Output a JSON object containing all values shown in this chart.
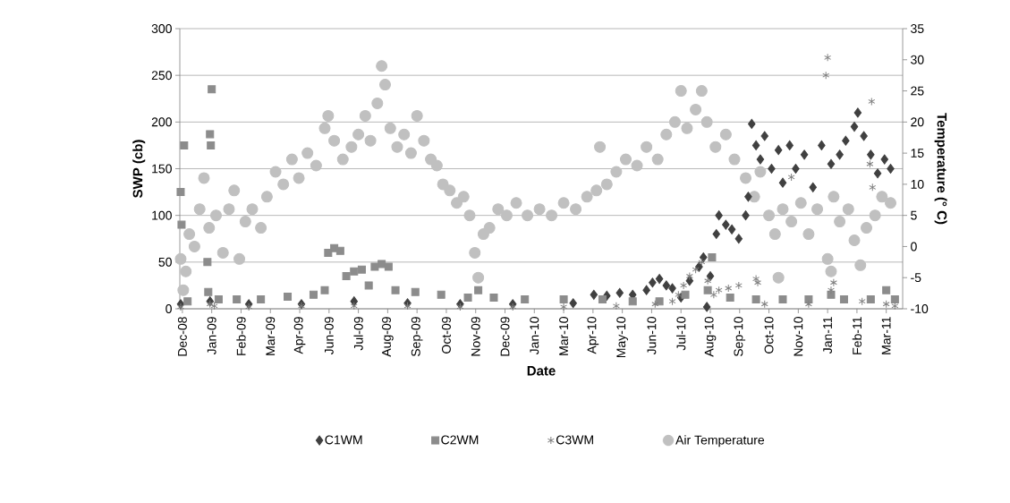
{
  "chart_data": {
    "type": "scatter",
    "xlabel": "Date",
    "ylabel": "SWP (cb)",
    "y2label": "Temperature (° C)",
    "xlim": [
      "2008-12-11",
      "2011-03-29"
    ],
    "xticks": [
      {
        "value": "2008-12-14",
        "label": "Dec-08"
      },
      {
        "value": "2009-01-17",
        "label": "Jan-09"
      },
      {
        "value": "2009-02-20",
        "label": "Feb-09"
      },
      {
        "value": "2009-03-26",
        "label": "Mar-09"
      },
      {
        "value": "2009-04-29",
        "label": "Apr-09"
      },
      {
        "value": "2009-06-02",
        "label": "Jun-09"
      },
      {
        "value": "2009-07-06",
        "label": "Jul-09"
      },
      {
        "value": "2009-08-09",
        "label": "Aug-09"
      },
      {
        "value": "2009-09-12",
        "label": "Sep-09"
      },
      {
        "value": "2009-10-16",
        "label": "Oct-09"
      },
      {
        "value": "2009-11-19",
        "label": "Nov-09"
      },
      {
        "value": "2009-12-23",
        "label": "Dec-09"
      },
      {
        "value": "2010-01-26",
        "label": "Jan-10"
      },
      {
        "value": "2010-03-01",
        "label": "Mar-10"
      },
      {
        "value": "2010-04-04",
        "label": "Apr-10"
      },
      {
        "value": "2010-05-08",
        "label": "May-10"
      },
      {
        "value": "2010-06-11",
        "label": "Jun-10"
      },
      {
        "value": "2010-07-15",
        "label": "Jul-10"
      },
      {
        "value": "2010-08-18",
        "label": "Aug-10"
      },
      {
        "value": "2010-09-21",
        "label": "Sep-10"
      },
      {
        "value": "2010-10-25",
        "label": "Oct-10"
      },
      {
        "value": "2010-11-28",
        "label": "Nov-10"
      },
      {
        "value": "2011-01-01",
        "label": "Jan-11"
      },
      {
        "value": "2011-02-04",
        "label": "Feb-11"
      },
      {
        "value": "2011-03-10",
        "label": "Mar-11"
      }
    ],
    "ylim": [
      0,
      300
    ],
    "yticks": [
      0,
      50,
      100,
      150,
      200,
      250,
      300
    ],
    "y2lim": [
      -10,
      35
    ],
    "y2ticks": [
      -10,
      -5,
      0,
      5,
      10,
      15,
      20,
      25,
      30,
      35
    ],
    "grid": "y",
    "legend": "bottom",
    "series": [
      {
        "name": "C1WM",
        "color": "#404040",
        "marker": "diamond",
        "x": [
          "2008-12-12",
          "2009-01-15",
          "2009-03-01",
          "2009-05-01",
          "2009-07-01",
          "2009-09-01",
          "2009-11-01",
          "2010-01-01",
          "2010-03-12",
          "2010-04-05",
          "2010-04-20",
          "2010-05-05",
          "2010-05-20",
          "2010-06-05",
          "2010-06-12",
          "2010-06-20",
          "2010-06-28",
          "2010-07-05",
          "2010-07-15",
          "2010-07-25",
          "2010-08-05",
          "2010-08-10",
          "2010-08-14",
          "2010-08-18",
          "2010-08-25",
          "2010-08-28",
          "2010-09-05",
          "2010-09-12",
          "2010-09-20",
          "2010-09-28",
          "2010-10-01",
          "2010-10-05",
          "2010-10-10",
          "2010-10-15",
          "2010-10-20",
          "2010-10-28",
          "2010-11-05",
          "2010-11-10",
          "2010-11-18",
          "2010-11-25",
          "2010-12-05",
          "2010-12-15",
          "2010-12-25",
          "2011-01-05",
          "2011-01-15",
          "2011-01-22",
          "2011-02-01",
          "2011-02-05",
          "2011-02-12",
          "2011-02-20",
          "2011-02-28",
          "2011-03-08",
          "2011-03-15"
        ],
        "values": [
          5,
          8,
          5,
          5,
          8,
          6,
          5,
          5,
          6,
          15,
          14,
          17,
          15,
          20,
          28,
          32,
          25,
          22,
          12,
          30,
          45,
          55,
          2,
          35,
          80,
          100,
          90,
          85,
          75,
          100,
          120,
          198,
          175,
          160,
          185,
          150,
          170,
          135,
          175,
          150,
          165,
          130,
          175,
          155,
          165,
          180,
          195,
          210,
          185,
          165,
          145,
          160,
          150
        ]
      },
      {
        "name": "C2WM",
        "color": "#8c8c8c",
        "marker": "square",
        "x": [
          "2008-12-12",
          "2008-12-13",
          "2008-12-16",
          "2008-12-20",
          "2009-01-12",
          "2009-01-13",
          "2009-01-15",
          "2009-01-16",
          "2009-01-17",
          "2009-01-25",
          "2009-02-15",
          "2009-03-15",
          "2009-04-15",
          "2009-05-15",
          "2009-05-28",
          "2009-06-01",
          "2009-06-08",
          "2009-06-15",
          "2009-06-22",
          "2009-07-01",
          "2009-07-10",
          "2009-07-18",
          "2009-07-25",
          "2009-08-02",
          "2009-08-10",
          "2009-08-18",
          "2009-09-10",
          "2009-10-10",
          "2009-11-10",
          "2009-11-22",
          "2009-12-10",
          "2010-01-15",
          "2010-03-01",
          "2010-04-15",
          "2010-05-20",
          "2010-06-20",
          "2010-07-20",
          "2010-08-15",
          "2010-08-20",
          "2010-09-10",
          "2010-10-10",
          "2010-11-10",
          "2010-12-10",
          "2011-01-05",
          "2011-01-20",
          "2011-02-20",
          "2011-03-10",
          "2011-03-20"
        ],
        "values": [
          125,
          90,
          175,
          8,
          50,
          18,
          187,
          175,
          235,
          10,
          10,
          10,
          13,
          15,
          20,
          60,
          65,
          62,
          35,
          40,
          42,
          25,
          45,
          48,
          45,
          20,
          18,
          15,
          12,
          20,
          12,
          10,
          10,
          10,
          8,
          8,
          15,
          20,
          55,
          12,
          10,
          10,
          10,
          15,
          10,
          10,
          20,
          10
        ]
      },
      {
        "name": "C3WM",
        "color": "#7f7f7f",
        "marker": "cross",
        "x": [
          "2008-12-12",
          "2009-01-15",
          "2009-01-20",
          "2009-03-01",
          "2009-05-01",
          "2009-07-01",
          "2009-09-01",
          "2009-11-01",
          "2010-01-01",
          "2010-03-01",
          "2010-05-01",
          "2010-06-15",
          "2010-07-05",
          "2010-07-12",
          "2010-07-18",
          "2010-07-25",
          "2010-08-01",
          "2010-08-08",
          "2010-08-15",
          "2010-08-22",
          "2010-08-28",
          "2010-09-08",
          "2010-09-20",
          "2010-10-10",
          "2010-10-12",
          "2010-10-20",
          "2010-11-20",
          "2010-12-10",
          "2010-12-30",
          "2011-01-01",
          "2011-01-05",
          "2011-01-08",
          "2011-02-10",
          "2011-02-19",
          "2011-02-21",
          "2011-02-22",
          "2011-03-10",
          "2011-03-20"
        ],
        "values": [
          2,
          5,
          3,
          2,
          3,
          3,
          3,
          2,
          2,
          2,
          3,
          5,
          8,
          15,
          25,
          35,
          42,
          50,
          30,
          15,
          20,
          22,
          25,
          32,
          28,
          5,
          141,
          5,
          250,
          269,
          20,
          28,
          8,
          155,
          222,
          130,
          5,
          3
        ]
      },
      {
        "name": "Air Temperature",
        "color": "#c0c0c0",
        "marker": "circle",
        "axis": "y2",
        "x": [
          "2008-12-12",
          "2008-12-15",
          "2008-12-18",
          "2008-12-22",
          "2008-12-28",
          "2009-01-03",
          "2009-01-08",
          "2009-01-14",
          "2009-01-22",
          "2009-01-30",
          "2009-02-06",
          "2009-02-12",
          "2009-02-18",
          "2009-02-25",
          "2009-03-05",
          "2009-03-15",
          "2009-03-22",
          "2009-04-01",
          "2009-04-10",
          "2009-04-20",
          "2009-04-28",
          "2009-05-08",
          "2009-05-18",
          "2009-05-28",
          "2009-06-01",
          "2009-06-08",
          "2009-06-18",
          "2009-06-28",
          "2009-07-06",
          "2009-07-14",
          "2009-07-20",
          "2009-07-28",
          "2009-08-02",
          "2009-08-06",
          "2009-08-12",
          "2009-08-20",
          "2009-08-28",
          "2009-09-05",
          "2009-09-12",
          "2009-09-20",
          "2009-09-28",
          "2009-10-05",
          "2009-10-12",
          "2009-10-20",
          "2009-10-28",
          "2009-11-05",
          "2009-11-12",
          "2009-11-18",
          "2009-11-22",
          "2009-11-28",
          "2009-12-05",
          "2009-12-15",
          "2009-12-25",
          "2010-01-05",
          "2010-01-18",
          "2010-02-01",
          "2010-02-15",
          "2010-03-01",
          "2010-03-15",
          "2010-03-28",
          "2010-04-08",
          "2010-04-12",
          "2010-04-20",
          "2010-05-01",
          "2010-05-12",
          "2010-05-25",
          "2010-06-05",
          "2010-06-18",
          "2010-06-28",
          "2010-07-08",
          "2010-07-15",
          "2010-07-22",
          "2010-08-01",
          "2010-08-08",
          "2010-08-14",
          "2010-08-24",
          "2010-09-05",
          "2010-09-15",
          "2010-09-28",
          "2010-10-08",
          "2010-10-15",
          "2010-10-25",
          "2010-11-01",
          "2010-11-05",
          "2010-11-10",
          "2010-11-20",
          "2010-12-01",
          "2010-12-10",
          "2010-12-20",
          "2011-01-01",
          "2011-01-05",
          "2011-01-08",
          "2011-01-15",
          "2011-01-25",
          "2011-02-01",
          "2011-02-08",
          "2011-02-15",
          "2011-02-25",
          "2011-03-05",
          "2011-03-15"
        ],
        "values": [
          -2,
          -7,
          -4,
          2,
          0,
          6,
          11,
          3,
          5,
          -1,
          6,
          9,
          -2,
          4,
          6,
          3,
          8,
          12,
          10,
          14,
          11,
          15,
          13,
          19,
          21,
          17,
          14,
          16,
          18,
          21,
          17,
          23,
          29,
          26,
          19,
          16,
          18,
          15,
          21,
          17,
          14,
          13,
          10,
          9,
          7,
          8,
          5,
          -1,
          -5,
          2,
          3,
          6,
          5,
          7,
          5,
          6,
          5,
          7,
          6,
          8,
          9,
          16,
          10,
          12,
          14,
          13,
          16,
          14,
          18,
          20,
          25,
          19,
          22,
          25,
          20,
          16,
          18,
          14,
          11,
          8,
          12,
          5,
          2,
          -5,
          6,
          4,
          7,
          2,
          6,
          -2,
          -4,
          8,
          4,
          6,
          1,
          -3,
          3,
          5,
          8,
          7
        ]
      }
    ]
  }
}
